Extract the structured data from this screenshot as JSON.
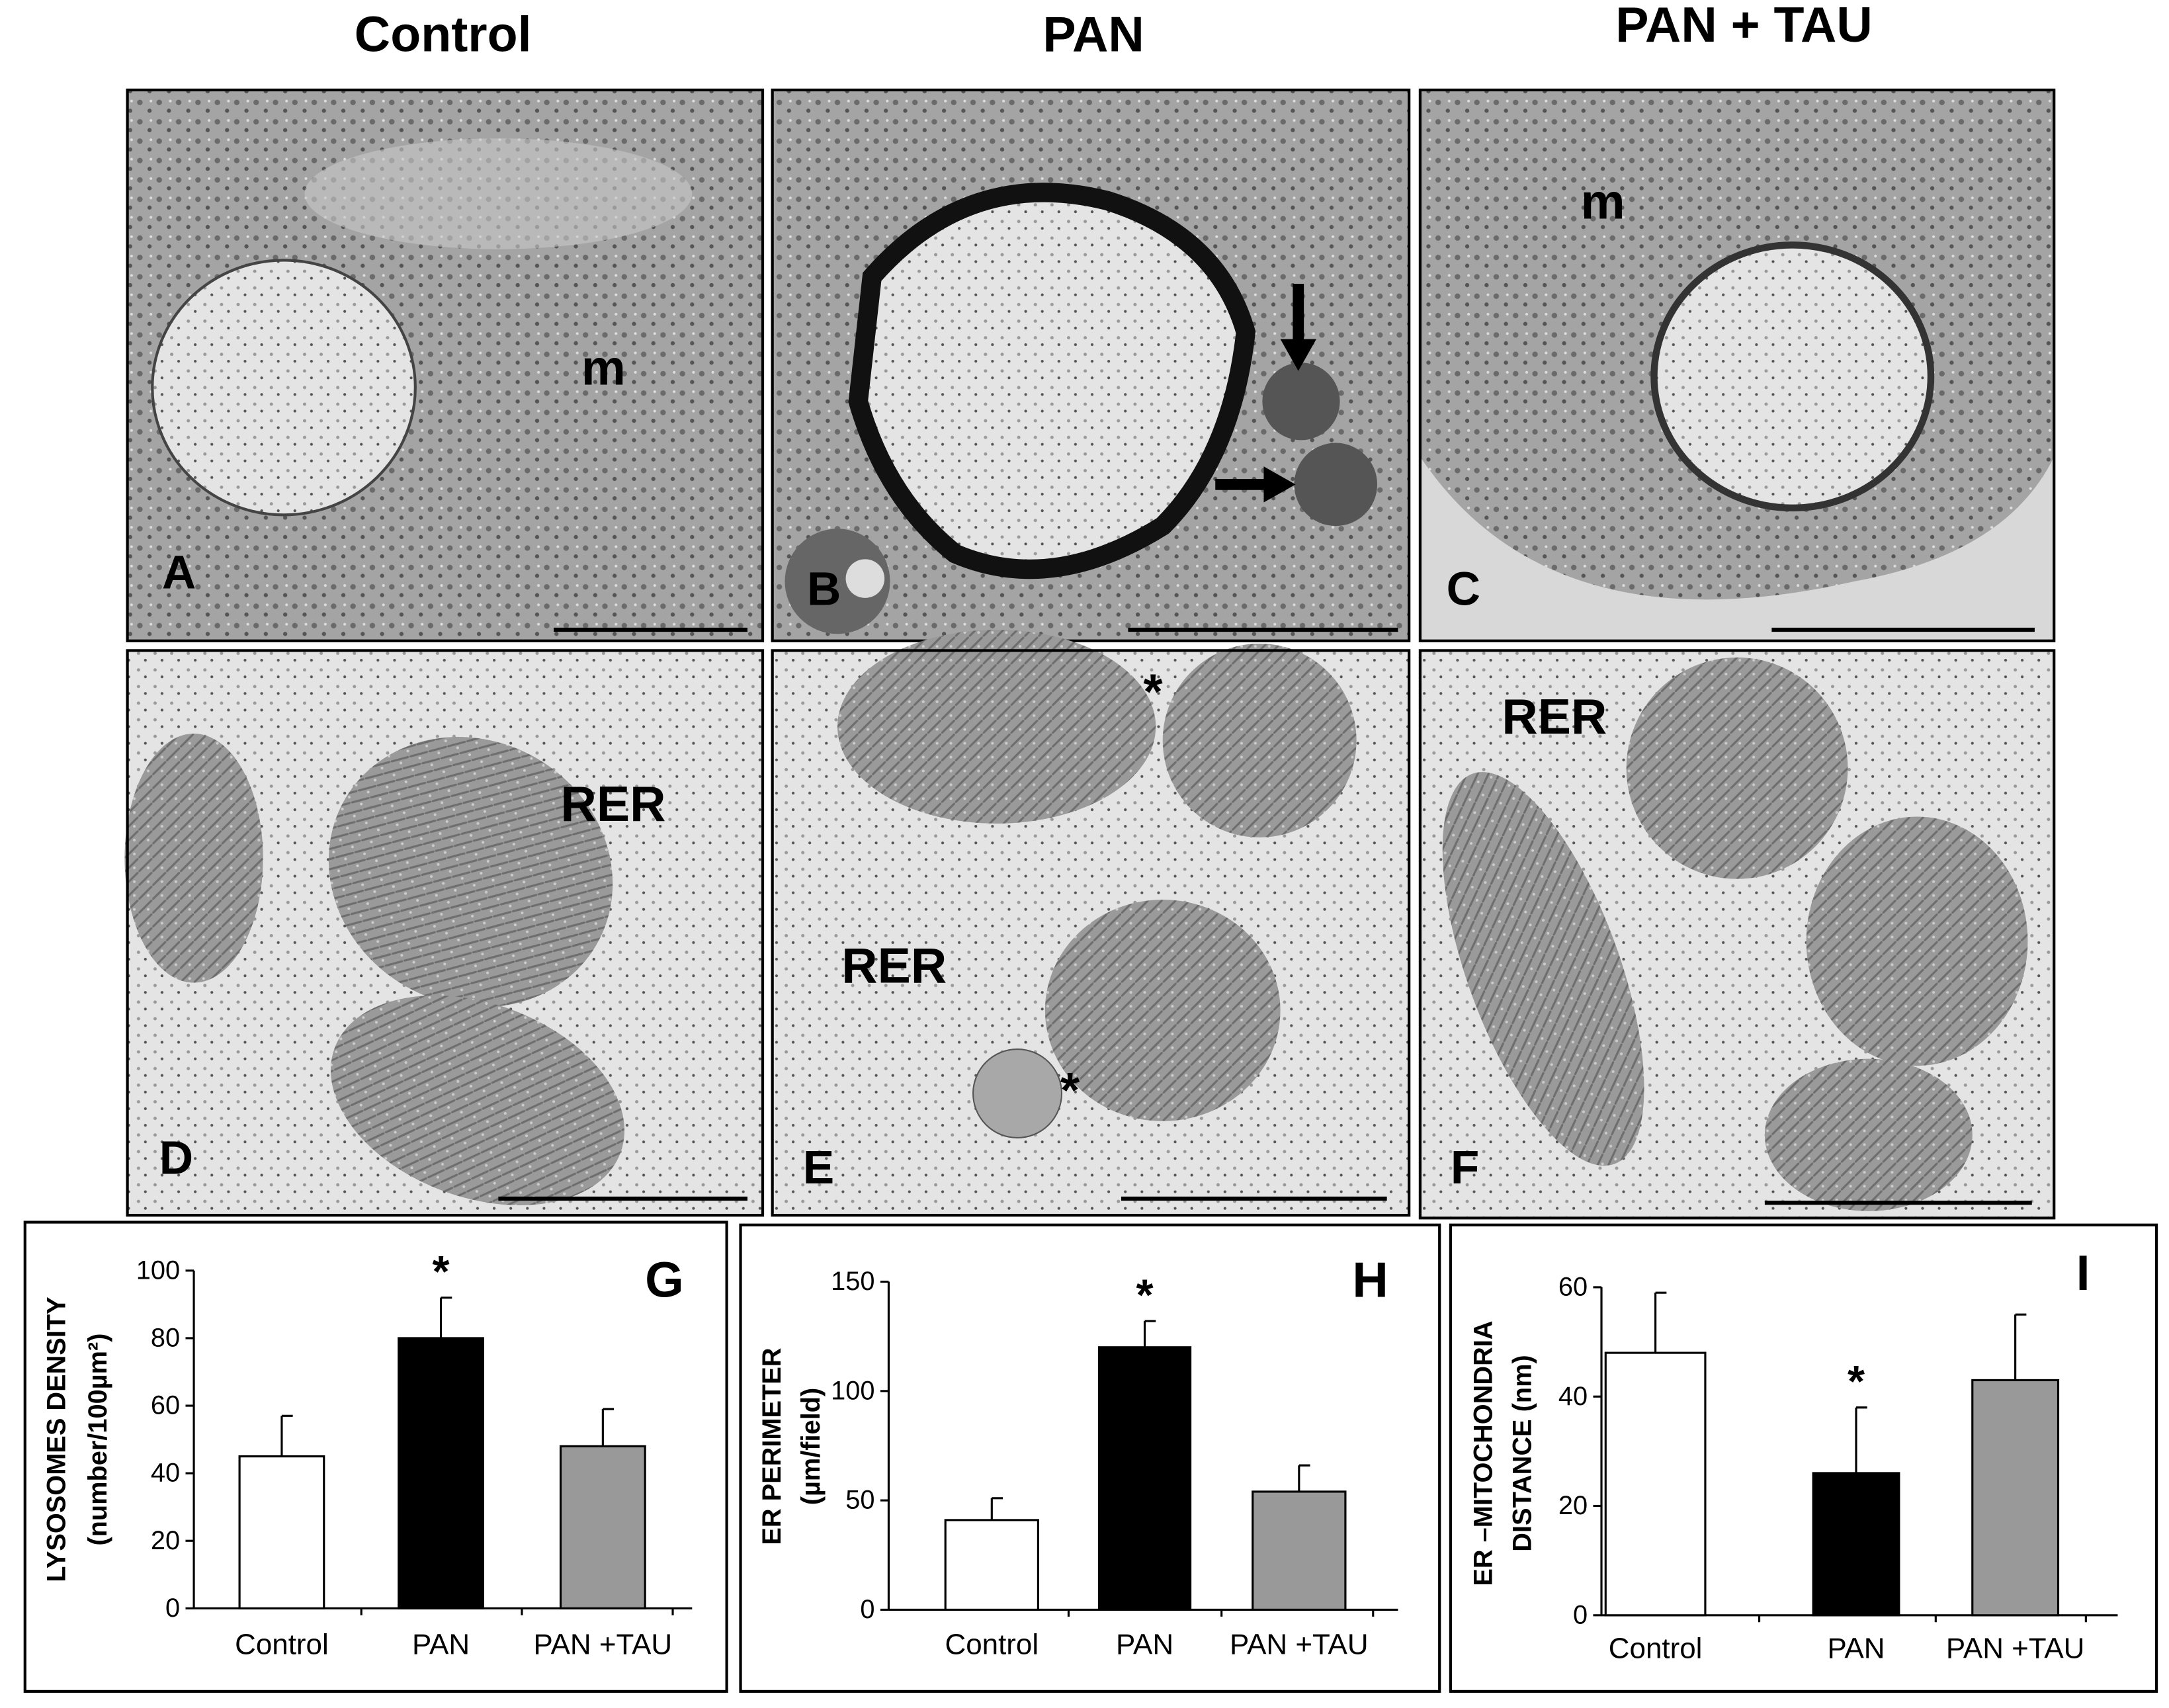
{
  "column_titles": [
    "Control",
    "PAN",
    "PAN + TAU"
  ],
  "micrographs": [
    {
      "label": "A",
      "annotations": [
        "m"
      ]
    },
    {
      "label": "B"
    },
    {
      "label": "C",
      "annotations": [
        "m"
      ]
    },
    {
      "label": "D",
      "annotations": [
        "RER"
      ]
    },
    {
      "label": "E",
      "annotations": [
        "RER",
        "*",
        "*"
      ]
    },
    {
      "label": "F",
      "annotations": [
        "RER"
      ]
    }
  ],
  "chart_data": [
    {
      "type": "bar",
      "panel_label": "G",
      "ylabel": [
        "LYSOSOMES DENSITY",
        "(number/100µm²)"
      ],
      "categories": [
        "Control",
        "PAN",
        "PAN +TAU"
      ],
      "values": [
        45,
        80,
        48
      ],
      "errors": [
        12,
        12,
        11
      ],
      "colors": [
        "#ffffff",
        "#000000",
        "#999999"
      ],
      "significance": [
        null,
        "*",
        null
      ],
      "ylim": [
        0,
        100
      ],
      "yticks": [
        0,
        20,
        40,
        60,
        80,
        100
      ]
    },
    {
      "type": "bar",
      "panel_label": "H",
      "ylabel": [
        "ER PERIMETER",
        "(µm/field)"
      ],
      "categories": [
        "Control",
        "PAN",
        "PAN +TAU"
      ],
      "values": [
        41,
        120,
        54
      ],
      "errors": [
        10,
        12,
        12
      ],
      "colors": [
        "#ffffff",
        "#000000",
        "#999999"
      ],
      "significance": [
        null,
        "*",
        null
      ],
      "ylim": [
        0,
        150
      ],
      "yticks": [
        0,
        50,
        100,
        150
      ]
    },
    {
      "type": "bar",
      "panel_label": "I",
      "ylabel": [
        "ER –MITOCHONDRIA",
        "DISTANCE (nm)"
      ],
      "categories": [
        "Control",
        "PAN",
        "PAN +TAU"
      ],
      "values": [
        48,
        26,
        43
      ],
      "errors": [
        11,
        12,
        12
      ],
      "colors": [
        "#ffffff",
        "#000000",
        "#999999"
      ],
      "significance": [
        null,
        "*",
        null
      ],
      "ylim": [
        0,
        60
      ],
      "yticks": [
        0,
        20,
        40,
        60
      ]
    }
  ]
}
